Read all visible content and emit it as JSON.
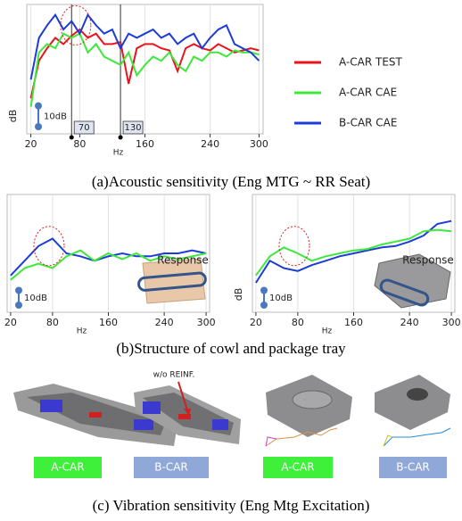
{
  "chart_data": [
    {
      "type": "line",
      "ylabel": "dB",
      "xlabel": "Hz",
      "scale_label": "10dB",
      "x": [
        20,
        30,
        40,
        50,
        60,
        70,
        80,
        90,
        100,
        110,
        120,
        130,
        140,
        150,
        160,
        170,
        180,
        190,
        200,
        210,
        220,
        230,
        240,
        250,
        260,
        270,
        280,
        290,
        300
      ],
      "series": [
        {
          "name": "A-CAR TEST",
          "color": "#e8141c",
          "values": [
            17,
            35,
            41,
            46,
            43,
            47,
            50,
            46,
            48,
            43,
            43,
            44,
            24,
            41,
            43,
            43,
            41,
            40,
            30,
            41,
            43,
            41,
            40,
            43,
            41,
            39,
            40,
            41,
            40
          ]
        },
        {
          "name": "A-CAR CAE",
          "color": "#3ee83a",
          "values": [
            13,
            39,
            43,
            41,
            48,
            46,
            48,
            39,
            43,
            37,
            35,
            33,
            39,
            28,
            33,
            37,
            35,
            39,
            33,
            30,
            37,
            35,
            39,
            39,
            37,
            40,
            39,
            39,
            38
          ]
        },
        {
          "name": "B-CAR CAE",
          "color": "#1c3cd8",
          "values": [
            26,
            46,
            52,
            57,
            50,
            54,
            48,
            57,
            52,
            48,
            50,
            41,
            48,
            46,
            48,
            50,
            46,
            48,
            43,
            46,
            48,
            41,
            46,
            50,
            52,
            43,
            41,
            39,
            35
          ]
        }
      ],
      "xlim": [
        15,
        305
      ],
      "ylim": [
        0,
        62
      ],
      "xticks": [
        20,
        80,
        160,
        240,
        300
      ],
      "grid": true,
      "vlines": [
        70,
        130
      ]
    },
    {
      "type": "line",
      "xlabel": "Hz",
      "scale_label": "10dB",
      "annotation": "Response",
      "x": [
        20,
        40,
        60,
        80,
        100,
        120,
        140,
        160,
        180,
        200,
        220,
        240,
        260,
        280,
        300
      ],
      "series": [
        {
          "color": "#1c3cd8",
          "values": [
            25,
            35,
            45,
            50,
            40,
            38,
            35,
            38,
            40,
            38,
            38,
            40,
            40,
            42,
            40
          ]
        },
        {
          "color": "#3ee83a",
          "values": [
            22,
            30,
            33,
            30,
            38,
            42,
            35,
            40,
            36,
            40,
            35,
            38,
            36,
            38,
            40
          ]
        }
      ],
      "xlim": [
        15,
        305
      ],
      "ylim": [
        0,
        80
      ],
      "xticks": [
        20,
        80,
        160,
        240,
        300
      ],
      "grid": true
    },
    {
      "type": "line",
      "ylabel": "dB",
      "xlabel": "Hz",
      "scale_label": "10dB",
      "annotation": "Response",
      "x": [
        20,
        40,
        60,
        80,
        100,
        120,
        140,
        160,
        180,
        200,
        220,
        240,
        260,
        280,
        300
      ],
      "series": [
        {
          "color": "#1c3cd8",
          "values": [
            20,
            35,
            30,
            28,
            32,
            35,
            38,
            40,
            42,
            44,
            45,
            48,
            52,
            60,
            62
          ]
        },
        {
          "color": "#3ee83a",
          "values": [
            25,
            38,
            44,
            40,
            35,
            38,
            40,
            42,
            43,
            46,
            48,
            50,
            55,
            56,
            55
          ]
        }
      ],
      "xlim": [
        15,
        305
      ],
      "ylim": [
        0,
        80
      ],
      "xticks": [
        20,
        80,
        160,
        240,
        300
      ],
      "grid": true
    }
  ],
  "captions": [
    "(a)Acoustic sensitivity (Eng MTG ~ RR Seat)",
    "(b)Structure of cowl and package tray",
    "(c) Vibration sensitivity (Eng Mtg Excitation)"
  ],
  "models": {
    "labels": [
      "A-CAR",
      "B-CAR",
      "A-CAR",
      "B-CAR"
    ],
    "annotation": "w/o REINF."
  }
}
